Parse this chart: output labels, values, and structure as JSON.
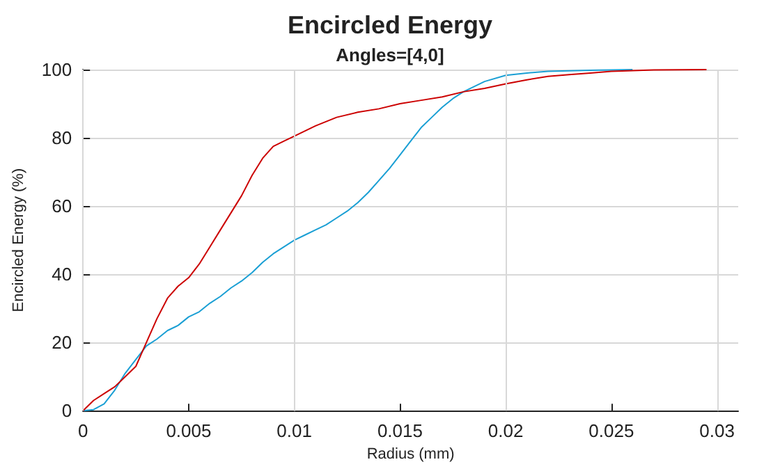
{
  "chart_data": {
    "type": "line",
    "title": "Encircled Energy",
    "subtitle": "Angles=[4,0]",
    "xlabel": "Radius (mm)",
    "ylabel": "Encircled Energy (%)",
    "xlim": [
      0,
      0.031
    ],
    "xticks": [
      0,
      0.005,
      0.01,
      0.015,
      0.02,
      0.025,
      0.03
    ],
    "ylim": [
      0,
      100
    ],
    "yticks": [
      0,
      20,
      40,
      60,
      80,
      100
    ],
    "grid": true,
    "marker": "none",
    "line_style": "solid",
    "series": [
      {
        "color": "#1a9fd4",
        "x": [
          0,
          0.0005,
          0.001,
          0.0015,
          0.002,
          0.0025,
          0.003,
          0.0035,
          0.004,
          0.0045,
          0.005,
          0.0055,
          0.006,
          0.0065,
          0.007,
          0.0075,
          0.008,
          0.0085,
          0.009,
          0.0095,
          0.01,
          0.0105,
          0.011,
          0.0115,
          0.012,
          0.0125,
          0.013,
          0.0135,
          0.014,
          0.0145,
          0.015,
          0.0155,
          0.016,
          0.0165,
          0.017,
          0.0175,
          0.018,
          0.019,
          0.02,
          0.021,
          0.022,
          0.024,
          0.026
        ],
        "values": [
          0,
          0.3,
          2,
          6,
          11,
          15,
          19,
          21,
          23.5,
          25,
          27.5,
          29,
          31.5,
          33.5,
          36,
          38,
          40.5,
          43.5,
          46,
          48,
          50,
          51.5,
          53,
          54.5,
          56.5,
          58.5,
          61,
          64,
          67.5,
          71,
          75,
          79,
          83,
          86,
          89,
          91.5,
          93.5,
          96.5,
          98.3,
          99,
          99.5,
          99.8,
          100
        ]
      },
      {
        "color": "#cc0000",
        "x": [
          0,
          0.0005,
          0.001,
          0.0015,
          0.002,
          0.0025,
          0.003,
          0.0035,
          0.004,
          0.0045,
          0.005,
          0.0055,
          0.006,
          0.0065,
          0.007,
          0.0075,
          0.008,
          0.0085,
          0.009,
          0.0095,
          0.01,
          0.011,
          0.012,
          0.013,
          0.014,
          0.015,
          0.016,
          0.017,
          0.018,
          0.019,
          0.02,
          0.021,
          0.022,
          0.023,
          0.024,
          0.025,
          0.026,
          0.027,
          0.0295
        ],
        "values": [
          0,
          3,
          5,
          7,
          10,
          13,
          20,
          27,
          33,
          36.5,
          39,
          43,
          48,
          53,
          58,
          63,
          69,
          74,
          77.5,
          79,
          80.5,
          83.5,
          86,
          87.5,
          88.5,
          90,
          91,
          92,
          93.5,
          94.5,
          95.8,
          97,
          98,
          98.5,
          99,
          99.5,
          99.7,
          99.9,
          100
        ]
      }
    ]
  }
}
